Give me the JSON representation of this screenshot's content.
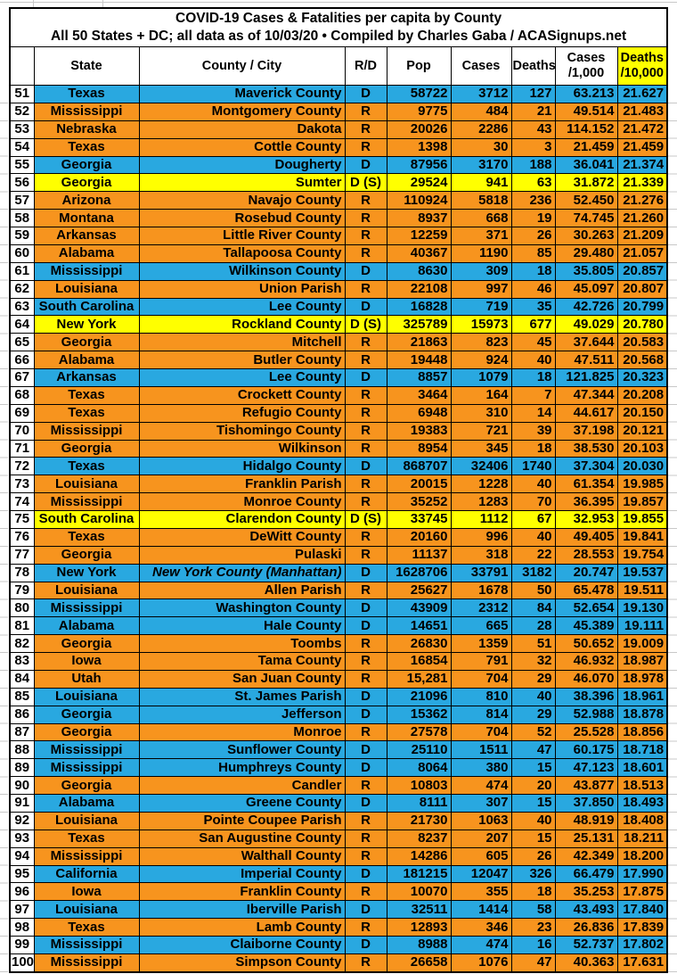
{
  "title": {
    "line1": "COVID-19 Cases & Fatalities per capita by County",
    "line2": "All 50 States + DC; all data as of 10/03/20  • Compiled by Charles Gaba / ACASignups.net"
  },
  "columns": {
    "rank": "",
    "state": "State",
    "county": "County / City",
    "rd": "R/D",
    "pop": "Pop",
    "cases": "Cases",
    "deaths": "Deaths",
    "cases_per_1000": {
      "line1": "Cases",
      "line2": "/1,000"
    },
    "deaths_per_10000": {
      "line1": "Deaths",
      "line2": "/10,000"
    }
  },
  "colors": {
    "democrat_blue": "#29A8E0",
    "republican_orange": "#F7941E",
    "swing_yellow": "#FFFF00",
    "gridline_gray": "#C8C8C8",
    "border_black": "#000000"
  },
  "chart_data": {
    "type": "table",
    "title": "COVID-19 Cases & Fatalities per capita by County",
    "subtitle": "All 50 States + DC; all data as of 10/03/20 • Compiled by Charles Gaba / ACASignups.net",
    "columns": [
      "Rank",
      "State",
      "County / City",
      "R/D",
      "Pop",
      "Cases",
      "Deaths",
      "Cases /1,000",
      "Deaths /10,000"
    ],
    "row_color_key": {
      "blue": "D",
      "orange": "R",
      "yellow": "D (S)"
    },
    "rows": [
      {
        "rank": 51,
        "state": "Texas",
        "county": "Maverick County",
        "rd": "D",
        "pop": "58722",
        "cases": "3712",
        "deaths": "127",
        "cases_per_1000": "63.213",
        "deaths_per_10000": "21.627",
        "color": "blue"
      },
      {
        "rank": 52,
        "state": "Mississippi",
        "county": "Montgomery County",
        "rd": "R",
        "pop": "9775",
        "cases": "484",
        "deaths": "21",
        "cases_per_1000": "49.514",
        "deaths_per_10000": "21.483",
        "color": "orange"
      },
      {
        "rank": 53,
        "state": "Nebraska",
        "county": "Dakota",
        "rd": "R",
        "pop": "20026",
        "cases": "2286",
        "deaths": "43",
        "cases_per_1000": "114.152",
        "deaths_per_10000": "21.472",
        "color": "orange"
      },
      {
        "rank": 54,
        "state": "Texas",
        "county": "Cottle County",
        "rd": "R",
        "pop": "1398",
        "cases": "30",
        "deaths": "3",
        "cases_per_1000": "21.459",
        "deaths_per_10000": "21.459",
        "color": "orange"
      },
      {
        "rank": 55,
        "state": "Georgia",
        "county": "Dougherty",
        "rd": "D",
        "pop": "87956",
        "cases": "3170",
        "deaths": "188",
        "cases_per_1000": "36.041",
        "deaths_per_10000": "21.374",
        "color": "blue"
      },
      {
        "rank": 56,
        "state": "Georgia",
        "county": "Sumter",
        "rd": "D (S)",
        "pop": "29524",
        "cases": "941",
        "deaths": "63",
        "cases_per_1000": "31.872",
        "deaths_per_10000": "21.339",
        "color": "yellow"
      },
      {
        "rank": 57,
        "state": "Arizona",
        "county": "Navajo County",
        "rd": "R",
        "pop": "110924",
        "cases": "5818",
        "deaths": "236",
        "cases_per_1000": "52.450",
        "deaths_per_10000": "21.276",
        "color": "orange"
      },
      {
        "rank": 58,
        "state": "Montana",
        "county": "Rosebud County",
        "rd": "R",
        "pop": "8937",
        "cases": "668",
        "deaths": "19",
        "cases_per_1000": "74.745",
        "deaths_per_10000": "21.260",
        "color": "orange"
      },
      {
        "rank": 59,
        "state": "Arkansas",
        "county": "Little River County",
        "rd": "R",
        "pop": "12259",
        "cases": "371",
        "deaths": "26",
        "cases_per_1000": "30.263",
        "deaths_per_10000": "21.209",
        "color": "orange"
      },
      {
        "rank": 60,
        "state": "Alabama",
        "county": "Tallapoosa County",
        "rd": "R",
        "pop": "40367",
        "cases": "1190",
        "deaths": "85",
        "cases_per_1000": "29.480",
        "deaths_per_10000": "21.057",
        "color": "orange"
      },
      {
        "rank": 61,
        "state": "Mississippi",
        "county": "Wilkinson County",
        "rd": "D",
        "pop": "8630",
        "cases": "309",
        "deaths": "18",
        "cases_per_1000": "35.805",
        "deaths_per_10000": "20.857",
        "color": "blue"
      },
      {
        "rank": 62,
        "state": "Louisiana",
        "county": "Union Parish",
        "rd": "R",
        "pop": "22108",
        "cases": "997",
        "deaths": "46",
        "cases_per_1000": "45.097",
        "deaths_per_10000": "20.807",
        "color": "orange"
      },
      {
        "rank": 63,
        "state": "South Carolina",
        "county": "Lee County",
        "rd": "D",
        "pop": "16828",
        "cases": "719",
        "deaths": "35",
        "cases_per_1000": "42.726",
        "deaths_per_10000": "20.799",
        "color": "blue"
      },
      {
        "rank": 64,
        "state": "New York",
        "county": "Rockland County",
        "rd": "D (S)",
        "pop": "325789",
        "cases": "15973",
        "deaths": "677",
        "cases_per_1000": "49.029",
        "deaths_per_10000": "20.780",
        "color": "yellow"
      },
      {
        "rank": 65,
        "state": "Georgia",
        "county": "Mitchell",
        "rd": "R",
        "pop": "21863",
        "cases": "823",
        "deaths": "45",
        "cases_per_1000": "37.644",
        "deaths_per_10000": "20.583",
        "color": "orange"
      },
      {
        "rank": 66,
        "state": "Alabama",
        "county": "Butler County",
        "rd": "R",
        "pop": "19448",
        "cases": "924",
        "deaths": "40",
        "cases_per_1000": "47.511",
        "deaths_per_10000": "20.568",
        "color": "orange"
      },
      {
        "rank": 67,
        "state": "Arkansas",
        "county": "Lee County",
        "rd": "D",
        "pop": "8857",
        "cases": "1079",
        "deaths": "18",
        "cases_per_1000": "121.825",
        "deaths_per_10000": "20.323",
        "color": "blue"
      },
      {
        "rank": 68,
        "state": "Texas",
        "county": "Crockett County",
        "rd": "R",
        "pop": "3464",
        "cases": "164",
        "deaths": "7",
        "cases_per_1000": "47.344",
        "deaths_per_10000": "20.208",
        "color": "orange"
      },
      {
        "rank": 69,
        "state": "Texas",
        "county": "Refugio County",
        "rd": "R",
        "pop": "6948",
        "cases": "310",
        "deaths": "14",
        "cases_per_1000": "44.617",
        "deaths_per_10000": "20.150",
        "color": "orange"
      },
      {
        "rank": 70,
        "state": "Mississippi",
        "county": "Tishomingo County",
        "rd": "R",
        "pop": "19383",
        "cases": "721",
        "deaths": "39",
        "cases_per_1000": "37.198",
        "deaths_per_10000": "20.121",
        "color": "orange"
      },
      {
        "rank": 71,
        "state": "Georgia",
        "county": "Wilkinson",
        "rd": "R",
        "pop": "8954",
        "cases": "345",
        "deaths": "18",
        "cases_per_1000": "38.530",
        "deaths_per_10000": "20.103",
        "color": "orange"
      },
      {
        "rank": 72,
        "state": "Texas",
        "county": "Hidalgo County",
        "rd": "D",
        "pop": "868707",
        "cases": "32406",
        "deaths": "1740",
        "cases_per_1000": "37.304",
        "deaths_per_10000": "20.030",
        "color": "blue"
      },
      {
        "rank": 73,
        "state": "Louisiana",
        "county": "Franklin Parish",
        "rd": "R",
        "pop": "20015",
        "cases": "1228",
        "deaths": "40",
        "cases_per_1000": "61.354",
        "deaths_per_10000": "19.985",
        "color": "orange"
      },
      {
        "rank": 74,
        "state": "Mississippi",
        "county": "Monroe County",
        "rd": "R",
        "pop": "35252",
        "cases": "1283",
        "deaths": "70",
        "cases_per_1000": "36.395",
        "deaths_per_10000": "19.857",
        "color": "orange"
      },
      {
        "rank": 75,
        "state": "South Carolina",
        "county": "Clarendon County",
        "rd": "D (S)",
        "pop": "33745",
        "cases": "1112",
        "deaths": "67",
        "cases_per_1000": "32.953",
        "deaths_per_10000": "19.855",
        "color": "yellow"
      },
      {
        "rank": 76,
        "state": "Texas",
        "county": "DeWitt County",
        "rd": "R",
        "pop": "20160",
        "cases": "996",
        "deaths": "40",
        "cases_per_1000": "49.405",
        "deaths_per_10000": "19.841",
        "color": "orange"
      },
      {
        "rank": 77,
        "state": "Georgia",
        "county": "Pulaski",
        "rd": "R",
        "pop": "11137",
        "cases": "318",
        "deaths": "22",
        "cases_per_1000": "28.553",
        "deaths_per_10000": "19.754",
        "color": "orange"
      },
      {
        "rank": 78,
        "state": "New York",
        "county": "New York County (Manhattan)",
        "rd": "D",
        "pop": "1628706",
        "cases": "33791",
        "deaths": "3182",
        "cases_per_1000": "20.747",
        "deaths_per_10000": "19.537",
        "color": "blue",
        "italic": true
      },
      {
        "rank": 79,
        "state": "Louisiana",
        "county": "Allen Parish",
        "rd": "R",
        "pop": "25627",
        "cases": "1678",
        "deaths": "50",
        "cases_per_1000": "65.478",
        "deaths_per_10000": "19.511",
        "color": "orange"
      },
      {
        "rank": 80,
        "state": "Mississippi",
        "county": "Washington County",
        "rd": "D",
        "pop": "43909",
        "cases": "2312",
        "deaths": "84",
        "cases_per_1000": "52.654",
        "deaths_per_10000": "19.130",
        "color": "blue"
      },
      {
        "rank": 81,
        "state": "Alabama",
        "county": "Hale County",
        "rd": "D",
        "pop": "14651",
        "cases": "665",
        "deaths": "28",
        "cases_per_1000": "45.389",
        "deaths_per_10000": "19.111",
        "color": "blue"
      },
      {
        "rank": 82,
        "state": "Georgia",
        "county": "Toombs",
        "rd": "R",
        "pop": "26830",
        "cases": "1359",
        "deaths": "51",
        "cases_per_1000": "50.652",
        "deaths_per_10000": "19.009",
        "color": "orange"
      },
      {
        "rank": 83,
        "state": "Iowa",
        "county": "Tama County",
        "rd": "R",
        "pop": "16854",
        "cases": "791",
        "deaths": "32",
        "cases_per_1000": "46.932",
        "deaths_per_10000": "18.987",
        "color": "orange"
      },
      {
        "rank": 84,
        "state": "Utah",
        "county": "San Juan County",
        "rd": "R",
        "pop": "15,281",
        "cases": "704",
        "deaths": "29",
        "cases_per_1000": "46.070",
        "deaths_per_10000": "18.978",
        "color": "orange"
      },
      {
        "rank": 85,
        "state": "Louisiana",
        "county": "St. James Parish",
        "rd": "D",
        "pop": "21096",
        "cases": "810",
        "deaths": "40",
        "cases_per_1000": "38.396",
        "deaths_per_10000": "18.961",
        "color": "blue"
      },
      {
        "rank": 86,
        "state": "Georgia",
        "county": "Jefferson",
        "rd": "D",
        "pop": "15362",
        "cases": "814",
        "deaths": "29",
        "cases_per_1000": "52.988",
        "deaths_per_10000": "18.878",
        "color": "blue"
      },
      {
        "rank": 87,
        "state": "Georgia",
        "county": "Monroe",
        "rd": "R",
        "pop": "27578",
        "cases": "704",
        "deaths": "52",
        "cases_per_1000": "25.528",
        "deaths_per_10000": "18.856",
        "color": "orange"
      },
      {
        "rank": 88,
        "state": "Mississippi",
        "county": "Sunflower County",
        "rd": "D",
        "pop": "25110",
        "cases": "1511",
        "deaths": "47",
        "cases_per_1000": "60.175",
        "deaths_per_10000": "18.718",
        "color": "blue"
      },
      {
        "rank": 89,
        "state": "Mississippi",
        "county": "Humphreys County",
        "rd": "D",
        "pop": "8064",
        "cases": "380",
        "deaths": "15",
        "cases_per_1000": "47.123",
        "deaths_per_10000": "18.601",
        "color": "blue"
      },
      {
        "rank": 90,
        "state": "Georgia",
        "county": "Candler",
        "rd": "R",
        "pop": "10803",
        "cases": "474",
        "deaths": "20",
        "cases_per_1000": "43.877",
        "deaths_per_10000": "18.513",
        "color": "orange"
      },
      {
        "rank": 91,
        "state": "Alabama",
        "county": "Greene County",
        "rd": "D",
        "pop": "8111",
        "cases": "307",
        "deaths": "15",
        "cases_per_1000": "37.850",
        "deaths_per_10000": "18.493",
        "color": "blue"
      },
      {
        "rank": 92,
        "state": "Louisiana",
        "county": "Pointe Coupee Parish",
        "rd": "R",
        "pop": "21730",
        "cases": "1063",
        "deaths": "40",
        "cases_per_1000": "48.919",
        "deaths_per_10000": "18.408",
        "color": "orange"
      },
      {
        "rank": 93,
        "state": "Texas",
        "county": "San Augustine County",
        "rd": "R",
        "pop": "8237",
        "cases": "207",
        "deaths": "15",
        "cases_per_1000": "25.131",
        "deaths_per_10000": "18.211",
        "color": "orange"
      },
      {
        "rank": 94,
        "state": "Mississippi",
        "county": "Walthall County",
        "rd": "R",
        "pop": "14286",
        "cases": "605",
        "deaths": "26",
        "cases_per_1000": "42.349",
        "deaths_per_10000": "18.200",
        "color": "orange"
      },
      {
        "rank": 95,
        "state": "California",
        "county": "Imperial County",
        "rd": "D",
        "pop": "181215",
        "cases": "12047",
        "deaths": "326",
        "cases_per_1000": "66.479",
        "deaths_per_10000": "17.990",
        "color": "blue"
      },
      {
        "rank": 96,
        "state": "Iowa",
        "county": "Franklin County",
        "rd": "R",
        "pop": "10070",
        "cases": "355",
        "deaths": "18",
        "cases_per_1000": "35.253",
        "deaths_per_10000": "17.875",
        "color": "orange"
      },
      {
        "rank": 97,
        "state": "Louisiana",
        "county": "Iberville Parish",
        "rd": "D",
        "pop": "32511",
        "cases": "1414",
        "deaths": "58",
        "cases_per_1000": "43.493",
        "deaths_per_10000": "17.840",
        "color": "blue"
      },
      {
        "rank": 98,
        "state": "Texas",
        "county": "Lamb County",
        "rd": "R",
        "pop": "12893",
        "cases": "346",
        "deaths": "23",
        "cases_per_1000": "26.836",
        "deaths_per_10000": "17.839",
        "color": "orange"
      },
      {
        "rank": 99,
        "state": "Mississippi",
        "county": "Claiborne County",
        "rd": "D",
        "pop": "8988",
        "cases": "474",
        "deaths": "16",
        "cases_per_1000": "52.737",
        "deaths_per_10000": "17.802",
        "color": "blue"
      },
      {
        "rank": 100,
        "state": "Mississippi",
        "county": "Simpson County",
        "rd": "R",
        "pop": "26658",
        "cases": "1076",
        "deaths": "47",
        "cases_per_1000": "40.363",
        "deaths_per_10000": "17.631",
        "color": "orange"
      }
    ]
  }
}
